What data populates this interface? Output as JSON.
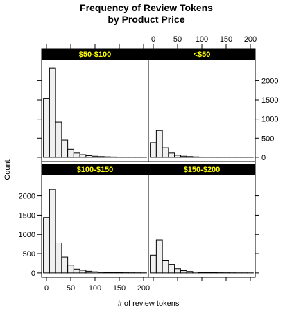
{
  "chart_data": {
    "type": "histogram",
    "title_line1": "Frequency of Review Tokens",
    "title_line2": "by Product Price",
    "xlabel": "# of review tokens",
    "ylabel": "Count",
    "xlim": [
      -10,
      210
    ],
    "ylim": [
      -110,
      2550
    ],
    "x_ticks": [
      0,
      50,
      100,
      150,
      200
    ],
    "y_ticks": [
      0,
      500,
      1000,
      1500,
      2000
    ],
    "bin_width": 12.5,
    "bin_starts": [
      -6.25,
      6.25,
      18.75,
      31.25,
      43.75,
      56.25,
      68.75,
      81.25,
      93.75,
      106.25,
      118.75,
      131.25,
      143.75,
      156.25,
      168.75,
      181.25,
      193.75
    ],
    "colors": {
      "bar_fill": "#f0f0f0",
      "bar_stroke": "#000000",
      "strip_bg": "#000000",
      "strip_text": "#ffff00"
    },
    "panels": [
      {
        "label": "$50-$100",
        "values": [
          1530,
          2330,
          920,
          450,
          210,
          110,
          70,
          45,
          30,
          20,
          14,
          10,
          7,
          5,
          4,
          3,
          2
        ]
      },
      {
        "label": "<$50",
        "values": [
          380,
          700,
          250,
          110,
          55,
          30,
          20,
          12,
          8,
          5,
          4,
          3,
          2,
          2,
          1,
          1,
          1
        ]
      },
      {
        "label": "$100-$150",
        "values": [
          1440,
          2170,
          780,
          410,
          200,
          100,
          70,
          45,
          30,
          20,
          14,
          10,
          7,
          5,
          4,
          3,
          2
        ]
      },
      {
        "label": "$150-$200",
        "values": [
          460,
          860,
          330,
          220,
          110,
          60,
          38,
          25,
          16,
          10,
          7,
          5,
          4,
          3,
          2,
          2,
          1
        ]
      }
    ]
  }
}
